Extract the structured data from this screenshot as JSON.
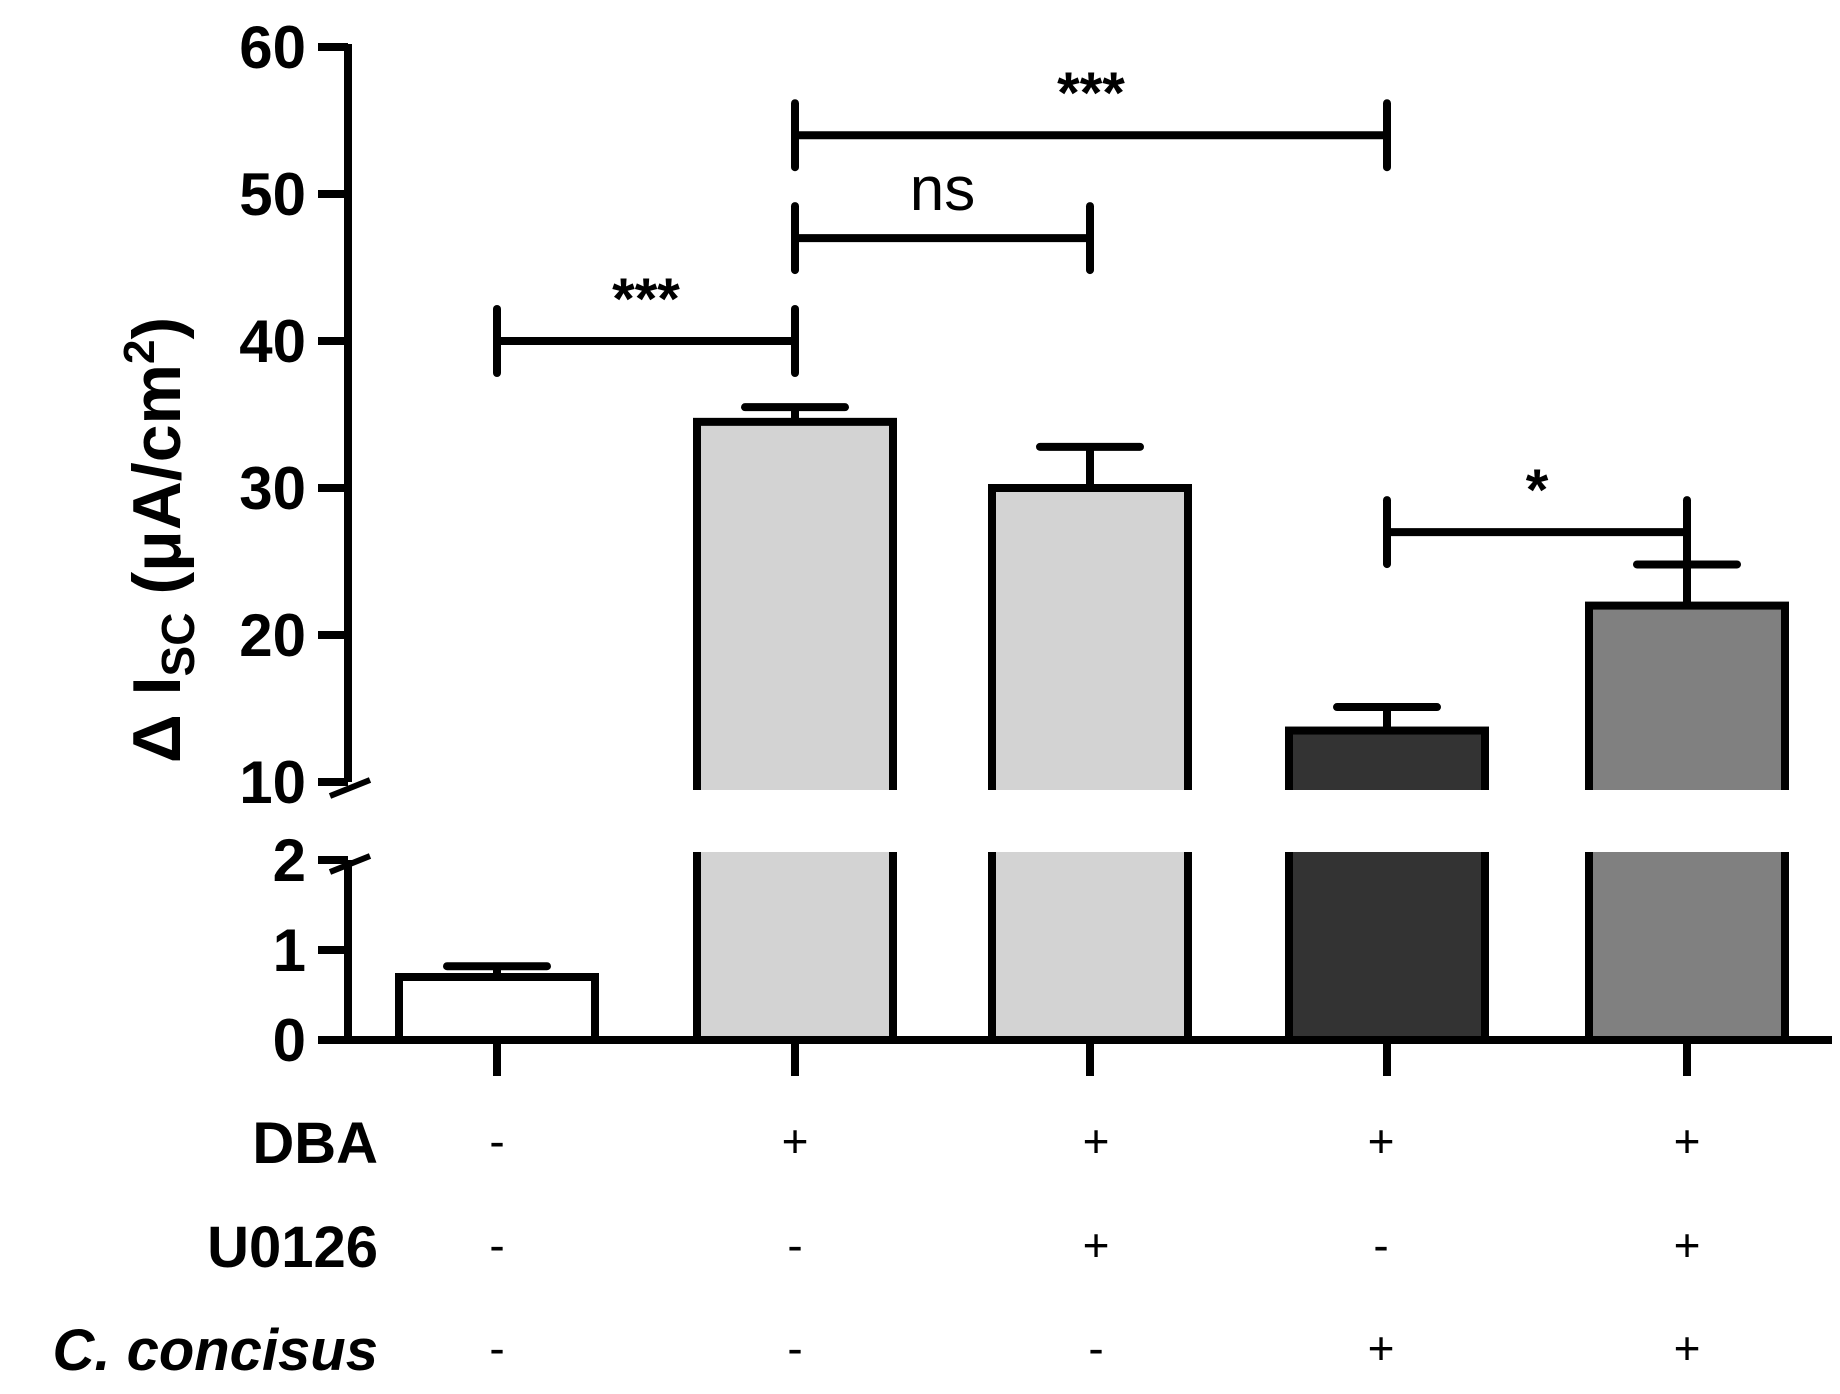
{
  "chart_data": {
    "type": "bar",
    "ylabel_prefix": "Δ I",
    "ylabel_subscript": "SC",
    "ylabel_unit": "(μA/cm",
    "ylabel_sup": "2",
    "ylabel_close": ")",
    "axis_break": {
      "lower": [
        0,
        2
      ],
      "upper": [
        10,
        60
      ]
    },
    "yticks_lower": [
      0,
      1,
      2
    ],
    "yticks_upper": [
      10,
      20,
      30,
      40,
      50,
      60
    ],
    "ytick_labels_lower": [
      "0",
      "1",
      "2"
    ],
    "ytick_labels_upper": [
      "10",
      "20",
      "30",
      "40",
      "50",
      "60"
    ],
    "bars": [
      {
        "value": 0.7,
        "error": 0.12,
        "color": "#ffffff"
      },
      {
        "value": 34.5,
        "error": 1.0,
        "color": "#d3d3d3"
      },
      {
        "value": 30.0,
        "error": 2.8,
        "color": "#d3d3d3"
      },
      {
        "value": 13.5,
        "error": 1.6,
        "color": "#333333"
      },
      {
        "value": 22.0,
        "error": 2.8,
        "color": "#808080"
      }
    ],
    "significance": [
      {
        "from": 0,
        "to": 1,
        "y": 40,
        "label": "***",
        "style": "bold"
      },
      {
        "from": 1,
        "to": 2,
        "y": 47,
        "label": "ns",
        "style": "normal"
      },
      {
        "from": 1,
        "to": 3,
        "y": 54,
        "label": "***",
        "style": "bold"
      },
      {
        "from": 3,
        "to": 4,
        "y": 27,
        "label": "*",
        "style": "bold"
      }
    ],
    "conditions": [
      {
        "label": "DBA",
        "italic": false,
        "values": [
          "-",
          "+",
          "+",
          "+",
          "+"
        ]
      },
      {
        "label": "U0126",
        "italic": false,
        "values": [
          "-",
          "-",
          "+",
          "-",
          "+"
        ]
      },
      {
        "label": "C. concisus",
        "italic": true,
        "values": [
          "-",
          "-",
          "-",
          "+",
          "+"
        ]
      }
    ]
  }
}
